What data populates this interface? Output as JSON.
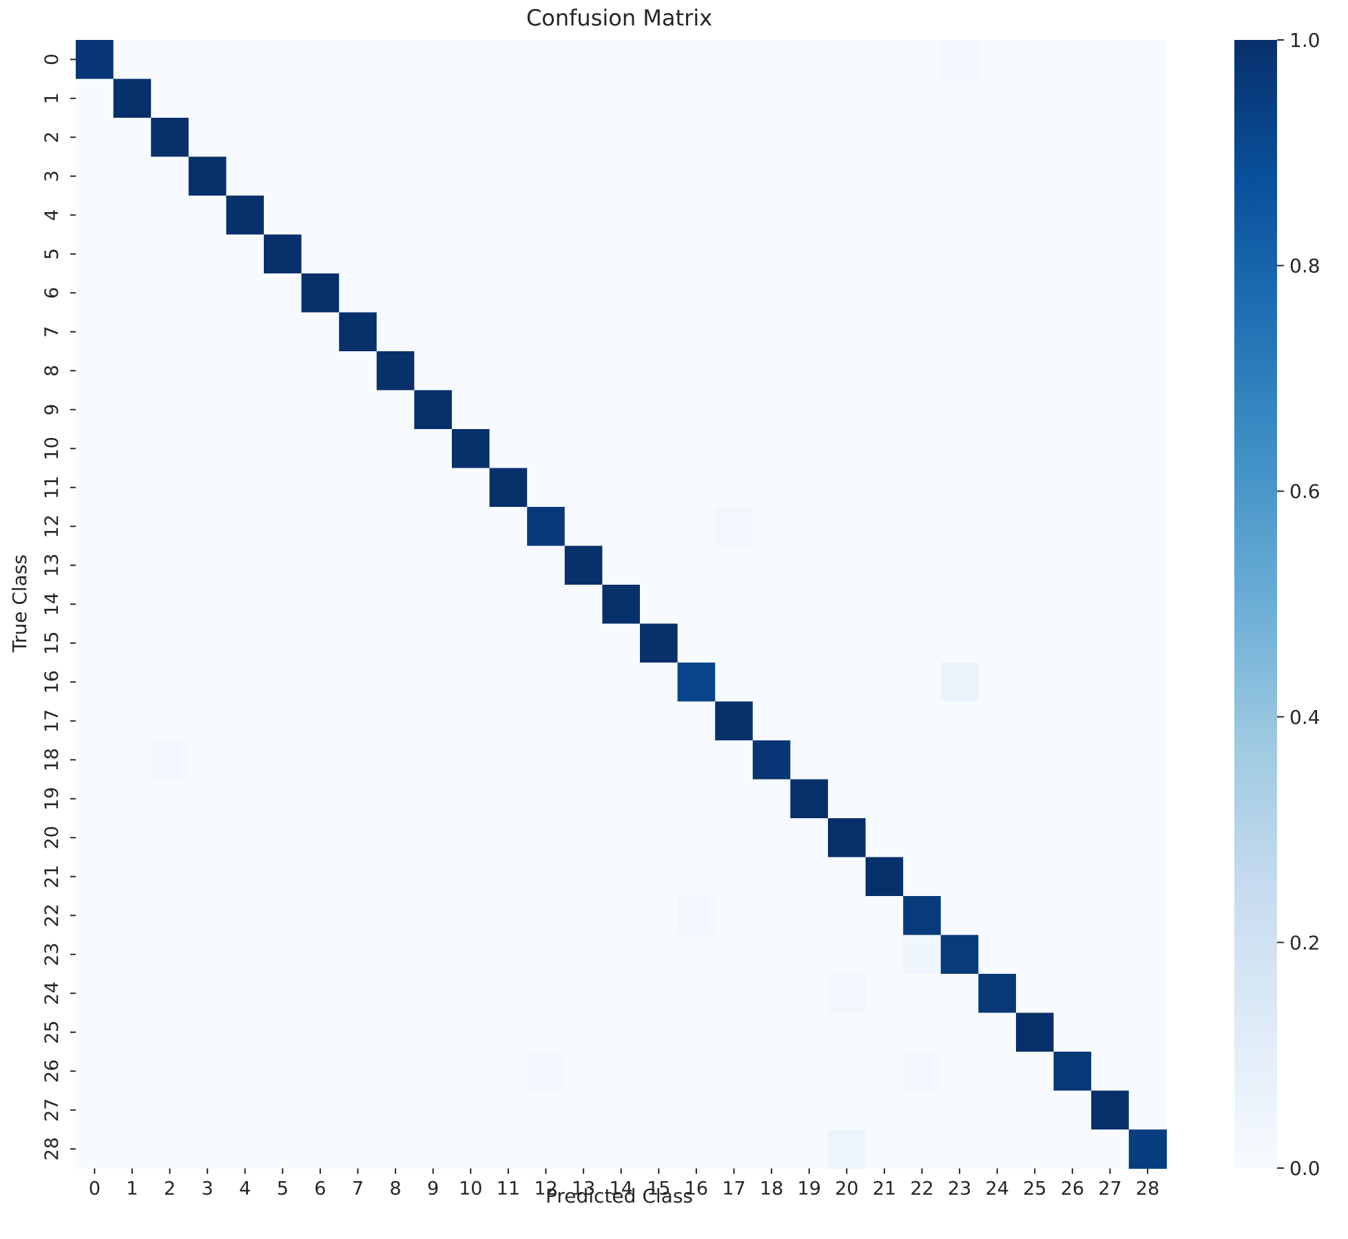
{
  "chart_data": {
    "type": "heatmap",
    "title": "Confusion Matrix",
    "xlabel": "Predicted Class",
    "ylabel": "True Class",
    "x_categories": [
      "0",
      "1",
      "2",
      "3",
      "4",
      "5",
      "6",
      "7",
      "8",
      "9",
      "10",
      "11",
      "12",
      "13",
      "14",
      "15",
      "16",
      "17",
      "18",
      "19",
      "20",
      "21",
      "22",
      "23",
      "24",
      "25",
      "26",
      "27",
      "28"
    ],
    "y_categories": [
      "0",
      "1",
      "2",
      "3",
      "4",
      "5",
      "6",
      "7",
      "8",
      "9",
      "10",
      "11",
      "12",
      "13",
      "14",
      "15",
      "16",
      "17",
      "18",
      "19",
      "20",
      "21",
      "22",
      "23",
      "24",
      "25",
      "26",
      "27",
      "28"
    ],
    "diagonal": [
      0.98,
      1.0,
      1.0,
      1.0,
      1.0,
      1.0,
      1.0,
      1.0,
      1.0,
      1.0,
      1.0,
      1.0,
      0.97,
      1.0,
      1.0,
      1.0,
      0.92,
      1.0,
      0.98,
      1.0,
      1.0,
      1.0,
      0.96,
      0.96,
      0.97,
      1.0,
      0.97,
      1.0,
      0.95
    ],
    "off_diagonal": [
      {
        "true": "0",
        "pred": "23",
        "value": 0.02
      },
      {
        "true": "12",
        "pred": "17",
        "value": 0.03
      },
      {
        "true": "16",
        "pred": "23",
        "value": 0.06
      },
      {
        "true": "18",
        "pred": "2",
        "value": 0.02
      },
      {
        "true": "22",
        "pred": "16",
        "value": 0.03
      },
      {
        "true": "23",
        "pred": "22",
        "value": 0.04
      },
      {
        "true": "24",
        "pred": "20",
        "value": 0.03
      },
      {
        "true": "26",
        "pred": "12",
        "value": 0.02
      },
      {
        "true": "26",
        "pred": "22",
        "value": 0.02
      },
      {
        "true": "28",
        "pred": "20",
        "value": 0.05
      }
    ],
    "colormap": "Blues",
    "color_low": "#f7fbff",
    "color_high": "#08306b",
    "vmin": 0.0,
    "vmax": 1.0,
    "colorbar_ticks": [
      "0.0",
      "0.2",
      "0.4",
      "0.6",
      "0.8",
      "1.0"
    ],
    "colorbar_tick_values": [
      0.0,
      0.2,
      0.4,
      0.6,
      0.8,
      1.0
    ]
  }
}
